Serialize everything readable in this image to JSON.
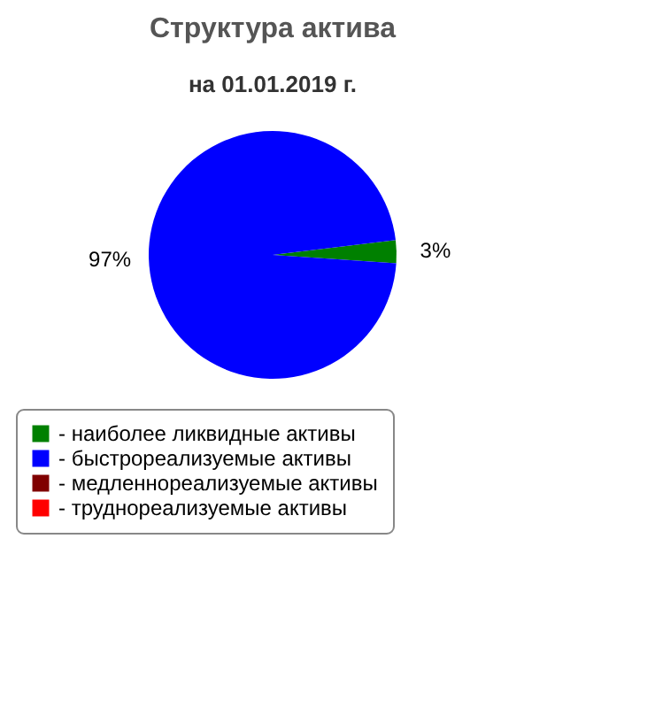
{
  "chart_data": {
    "type": "pie",
    "title": "Структура актива",
    "subtitle": "на 01.01.2019 г.",
    "categories": [
      "- наиболее ликвидные активы",
      "- быстрореализуемые активы",
      "- медленнореализуемые активы",
      "- труднореализуемые активы"
    ],
    "values": [
      3,
      97,
      0,
      0
    ],
    "colors": [
      "#008000",
      "#0000ff",
      "#800000",
      "#ff0000"
    ],
    "value_labels": [
      "3%",
      "97%",
      null,
      null
    ],
    "legend": "bottom"
  }
}
